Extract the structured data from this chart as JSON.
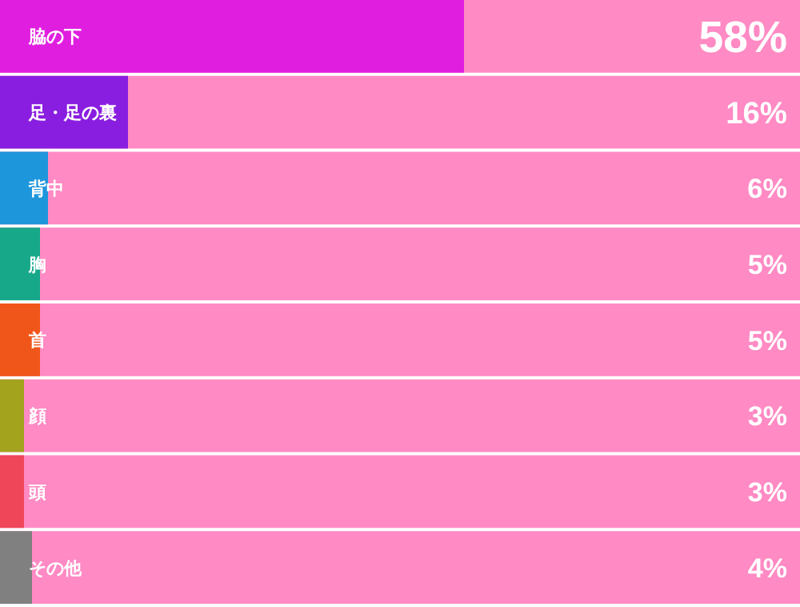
{
  "chart_data": {
    "type": "bar",
    "orientation": "horizontal",
    "categories": [
      "脇の下",
      "足・足の裏",
      "背中",
      "胸",
      "首",
      "顔",
      "頭",
      "その他"
    ],
    "values": [
      58,
      16,
      6,
      5,
      5,
      3,
      3,
      4
    ],
    "colors": [
      "#e01ee0",
      "#8a1ee0",
      "#1e96dc",
      "#17a88a",
      "#f0561a",
      "#a3a31e",
      "#f0465a",
      "#808080"
    ],
    "value_labels": [
      "58%",
      "16%",
      "6%",
      "5%",
      "5%",
      "3%",
      "3%",
      "4%"
    ],
    "xlim": [
      0,
      100
    ],
    "bands": [
      {
        "axis": "x",
        "from": 0,
        "to": 100,
        "color": "#ff8ac4"
      }
    ]
  }
}
